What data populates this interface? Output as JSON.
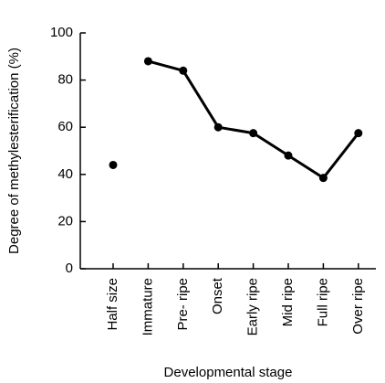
{
  "chart_data": {
    "type": "line",
    "x_label": "Developmental stage",
    "y_label": "Degree of methylesterification (%)",
    "categories": [
      "Half size",
      "Immature",
      "Pre- ripe",
      "Onset",
      "Early ripe",
      "Mid ripe",
      "Full ripe",
      "Over ripe"
    ],
    "series": [
      {
        "color": "#000000",
        "line": false,
        "values": [
          44,
          null,
          null,
          null,
          null,
          null,
          null,
          null
        ]
      },
      {
        "color": "#000000",
        "line": true,
        "values": [
          null,
          88,
          84,
          60,
          57.5,
          48,
          38.5,
          57.5
        ]
      }
    ],
    "ylim": [
      0,
      100
    ],
    "yticks": [
      0,
      20,
      40,
      60,
      80,
      100
    ],
    "grid": false
  }
}
